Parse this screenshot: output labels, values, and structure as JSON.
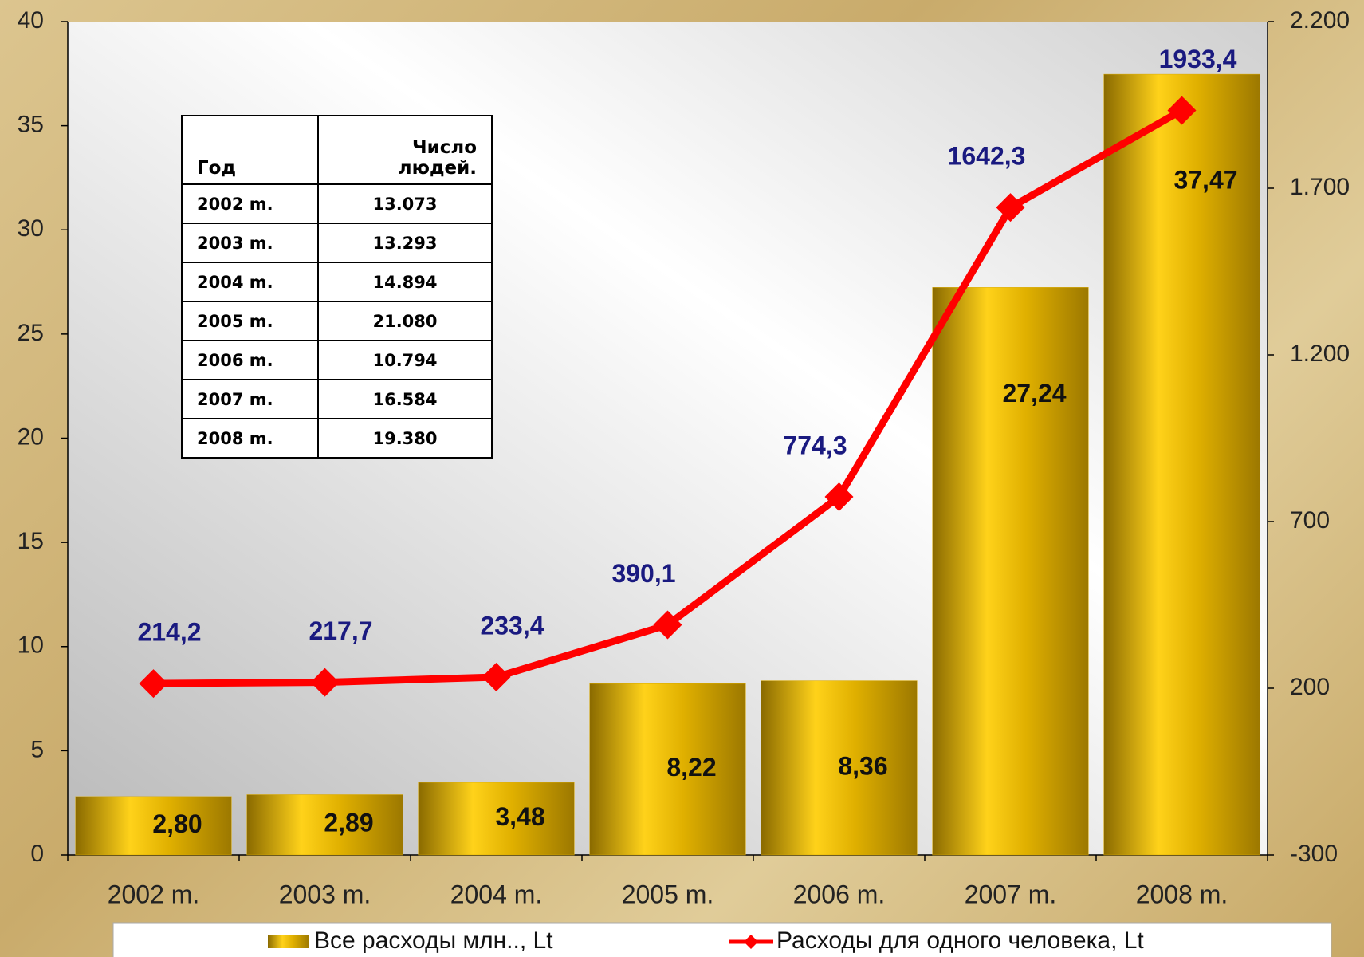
{
  "chart_data": {
    "type": "bar",
    "categories": [
      "2002 m.",
      "2003 m.",
      "2004 m.",
      "2005 m.",
      "2006 m.",
      "2007 m.",
      "2008 m."
    ],
    "series": [
      {
        "name": "Все расходы млн.., Lt",
        "type": "bar",
        "color": "#d9a900",
        "values": [
          2.8,
          2.89,
          3.48,
          8.22,
          8.36,
          27.24,
          37.47
        ],
        "value_labels": [
          "2,80",
          "2,89",
          "3,48",
          "8,22",
          "8,36",
          "27,24",
          "37,47"
        ]
      },
      {
        "name": "Расходы для одного человека, Lt",
        "type": "line",
        "axis": "y2",
        "color": "#ff0000",
        "values": [
          214.2,
          217.7,
          233.4,
          390.1,
          774.3,
          1642.3,
          1933.4
        ],
        "value_labels": [
          "214,2",
          "217,7",
          "233,4",
          "390,1",
          "774,3",
          "1642,3",
          "1933,4"
        ]
      }
    ],
    "ylim": [
      0,
      40
    ],
    "yticks": [
      0,
      5,
      10,
      15,
      20,
      25,
      30,
      35,
      40
    ],
    "y2lim": [
      -300,
      2200
    ],
    "y2ticks": [
      -300,
      200,
      700,
      {
        "value": 1200,
        "label": "1.200"
      },
      {
        "value": 1700,
        "label": "1.700"
      },
      {
        "value": 2200,
        "label": "2.200"
      }
    ],
    "legend": "bottom"
  },
  "table": {
    "header": [
      "Год",
      "Число людей."
    ],
    "rows": [
      [
        "2002 m.",
        "13.073"
      ],
      [
        "2003 m.",
        "13.293"
      ],
      [
        "2004 m.",
        "14.894"
      ],
      [
        "2005 m.",
        "21.080"
      ],
      [
        "2006 m.",
        "10.794"
      ],
      [
        "2007 m.",
        "16.584"
      ],
      [
        "2008 m.",
        "19.380"
      ]
    ]
  }
}
